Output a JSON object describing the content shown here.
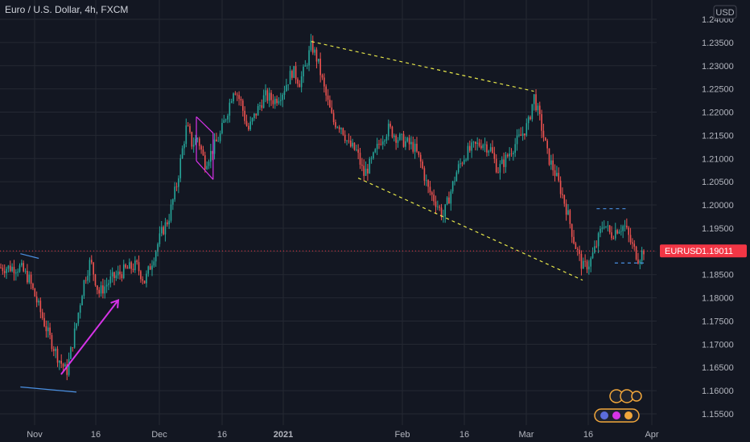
{
  "chart_data": {
    "type": "candlestick",
    "title": "Euro / U.S. Dollar, 4h, FXCM",
    "symbol": "EURUSD",
    "timeframe": "4h",
    "source": "FXCM",
    "currency": "USD",
    "last_price": 1.19011,
    "last_price_label": "1.19011",
    "ylim": [
      1.1515,
      1.2418
    ],
    "y_ticks": [
      1.155,
      1.16,
      1.165,
      1.17,
      1.175,
      1.18,
      1.185,
      1.19,
      1.195,
      1.2,
      1.205,
      1.21,
      1.215,
      1.22,
      1.225,
      1.23,
      1.235,
      1.24
    ],
    "y_tick_labels": [
      "1.15500",
      "1.16000",
      "1.16500",
      "1.17000",
      "1.17500",
      "1.18000",
      "1.18500",
      "1.19000",
      "1.19500",
      "1.20000",
      "1.20500",
      "1.21000",
      "1.21500",
      "1.22000",
      "1.22500",
      "1.23000",
      "1.23500",
      "1.24000"
    ],
    "x_ticks": [
      "Nov",
      "16",
      "Dec",
      "16",
      "2021",
      "Feb",
      "16",
      "Mar",
      "16",
      "Apr"
    ],
    "price_path": [
      [
        -0.02,
        1.1865
      ],
      [
        0.6,
        1.184
      ],
      [
        1.3,
        1.178
      ],
      [
        2.0,
        1.172
      ],
      [
        2.7,
        1.167
      ],
      [
        3.3,
        1.164
      ],
      [
        4.0,
        1.1745
      ],
      [
        4.5,
        1.183
      ],
      [
        5.0,
        1.188
      ],
      [
        5.6,
        1.181
      ],
      [
        6.5,
        1.184
      ],
      [
        7.5,
        1.186
      ],
      [
        8.3,
        1.187
      ],
      [
        8.9,
        1.1835
      ],
      [
        9.6,
        1.1895
      ],
      [
        10.1,
        1.194
      ],
      [
        10.6,
        1.197
      ],
      [
        11.2,
        1.2045
      ],
      [
        11.6,
        1.212
      ],
      [
        11.9,
        1.217
      ],
      [
        12.3,
        1.213
      ],
      [
        12.7,
        1.2145
      ],
      [
        13.2,
        1.209
      ],
      [
        13.6,
        1.211
      ],
      [
        14.3,
        1.215
      ],
      [
        14.9,
        1.221
      ],
      [
        15.3,
        1.2255
      ],
      [
        15.8,
        1.222
      ],
      [
        16.3,
        1.216
      ],
      [
        16.9,
        1.22
      ],
      [
        17.5,
        1.2235
      ],
      [
        18.2,
        1.2225
      ],
      [
        18.8,
        1.2245
      ],
      [
        19.5,
        1.229
      ],
      [
        20.0,
        1.2265
      ],
      [
        20.4,
        1.2295
      ],
      [
        20.85,
        1.2345
      ],
      [
        21.3,
        1.231
      ],
      [
        21.8,
        1.2245
      ],
      [
        22.4,
        1.218
      ],
      [
        23.0,
        1.217
      ],
      [
        23.5,
        1.213
      ],
      [
        24.1,
        1.2115
      ],
      [
        24.6,
        1.2065
      ],
      [
        25.2,
        1.2095
      ],
      [
        25.8,
        1.214
      ],
      [
        26.4,
        1.2165
      ],
      [
        27.0,
        1.2145
      ],
      [
        27.6,
        1.2135
      ],
      [
        28.2,
        1.2125
      ],
      [
        28.7,
        1.209
      ],
      [
        29.2,
        1.2035
      ],
      [
        29.8,
        1.2005
      ],
      [
        30.3,
        1.1975
      ],
      [
        30.8,
        1.2025
      ],
      [
        31.3,
        1.2075
      ],
      [
        31.9,
        1.211
      ],
      [
        32.5,
        1.2125
      ],
      [
        33.1,
        1.2135
      ],
      [
        33.7,
        1.212
      ],
      [
        34.2,
        1.2075
      ],
      [
        34.7,
        1.2095
      ],
      [
        35.3,
        1.2125
      ],
      [
        35.9,
        1.215
      ],
      [
        36.4,
        1.2175
      ],
      [
        36.8,
        1.2235
      ],
      [
        37.3,
        1.2175
      ],
      [
        37.8,
        1.2105
      ],
      [
        38.3,
        1.207
      ],
      [
        38.7,
        1.2035
      ],
      [
        39.2,
        1.1985
      ],
      [
        39.7,
        1.192
      ],
      [
        40.3,
        1.1865
      ],
      [
        40.8,
        1.1875
      ],
      [
        41.3,
        1.1915
      ],
      [
        41.8,
        1.1965
      ],
      [
        42.3,
        1.1935
      ],
      [
        42.8,
        1.195
      ],
      [
        43.3,
        1.1955
      ],
      [
        43.8,
        1.1915
      ],
      [
        44.3,
        1.1885
      ],
      [
        44.7,
        1.1905
      ]
    ],
    "highlighted_points": [
      {
        "label": "swing-low-nov",
        "x": 3.0,
        "y": 1.163
      },
      {
        "label": "swing-high-jan",
        "x": 20.85,
        "y": 1.2352
      },
      {
        "label": "peak-feb",
        "x": 36.8,
        "y": 1.2245
      },
      {
        "label": "swing-low-mar",
        "x": 40.3,
        "y": 1.1838
      }
    ],
    "drawings": [
      {
        "name": "upper-trendline",
        "style": "dashed",
        "color": "#e8e84a",
        "points": [
          [
            20.85,
            1.2352
          ],
          [
            36.8,
            1.2245
          ]
        ]
      },
      {
        "name": "lower-trendline",
        "style": "dashed",
        "color": "#e8e84a",
        "points": [
          [
            24.2,
            1.2058
          ],
          [
            40.3,
            1.1838
          ]
        ]
      },
      {
        "name": "recent-range-top",
        "style": "dashed",
        "color": "#4a90e2",
        "points": [
          [
            41.3,
            1.1992
          ],
          [
            43.6,
            1.1992
          ]
        ]
      },
      {
        "name": "recent-range-bottom",
        "style": "dashed",
        "color": "#4a90e2",
        "points": [
          [
            42.6,
            1.1875
          ],
          [
            44.8,
            1.1875
          ]
        ]
      },
      {
        "name": "early-line-top",
        "style": "solid",
        "color": "#4a90e2",
        "points": [
          [
            -0.02,
            1.1895
          ],
          [
            1.3,
            1.1885
          ]
        ]
      },
      {
        "name": "early-line-bottom",
        "style": "solid",
        "color": "#4a90e2",
        "points": [
          [
            -0.02,
            1.1608
          ],
          [
            4.0,
            1.1597
          ]
        ]
      },
      {
        "name": "arrow-rally",
        "style": "solid",
        "color": "#d633e8",
        "points": [
          [
            2.9,
            1.1635
          ],
          [
            7.0,
            1.1795
          ]
        ]
      },
      {
        "name": "dec-channel-top",
        "style": "solid",
        "color": "#d633e8",
        "points": [
          [
            12.6,
            1.219
          ],
          [
            13.8,
            1.2155
          ]
        ]
      },
      {
        "name": "dec-channel-bottom",
        "style": "solid",
        "color": "#d633e8",
        "points": [
          [
            12.6,
            1.2095
          ],
          [
            13.8,
            1.2055
          ]
        ]
      },
      {
        "name": "dec-channel-left",
        "style": "solid",
        "color": "#d633e8",
        "points": [
          [
            12.6,
            1.219
          ],
          [
            12.6,
            1.2095
          ]
        ]
      },
      {
        "name": "dec-channel-right",
        "style": "solid",
        "color": "#d633e8",
        "points": [
          [
            13.8,
            1.2155
          ],
          [
            13.8,
            1.2055
          ]
        ]
      }
    ],
    "colors": {
      "background": "#131722",
      "grid": "#242833",
      "up_candle": "#26a69a",
      "down_candle": "#ef5350",
      "price_line": "#f23645",
      "axis_text": "#b2b5be",
      "title_text": "#d1d4dc"
    },
    "grid": true,
    "legend": "none"
  }
}
